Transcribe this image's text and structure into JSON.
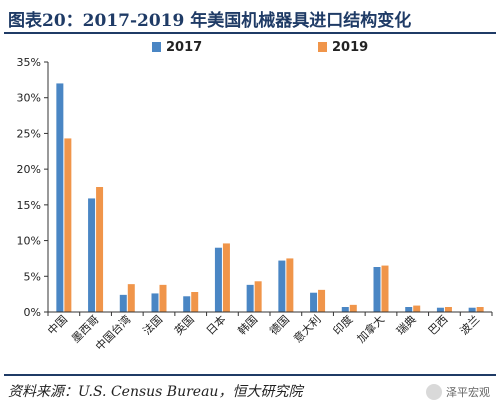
{
  "header": {
    "title": "图表20：2017-2019 年美国机械器具进口结构变化"
  },
  "footer": {
    "source": "资料来源：U.S. Census Bureau，恒大研究院",
    "watermark": "泽平宏观"
  },
  "colors": {
    "series_2017": "#4a86c4",
    "series_2019": "#f0954a",
    "frame": "#1f3b66"
  },
  "chart_data": {
    "type": "bar",
    "categories": [
      "中国",
      "墨西哥",
      "中国台湾",
      "法国",
      "英国",
      "日本",
      "韩国",
      "德国",
      "意大利",
      "印度",
      "加拿大",
      "瑞典",
      "巴西",
      "波兰"
    ],
    "series": [
      {
        "name": "2017",
        "values": [
          32.0,
          15.9,
          2.4,
          2.6,
          2.2,
          9.0,
          3.8,
          7.2,
          2.7,
          0.7,
          6.3,
          0.7,
          0.6,
          0.6
        ]
      },
      {
        "name": "2019",
        "values": [
          24.3,
          17.5,
          3.9,
          3.8,
          2.8,
          9.6,
          4.3,
          7.5,
          3.1,
          1.0,
          6.5,
          0.9,
          0.7,
          0.7
        ]
      }
    ],
    "yticks": [
      "0%",
      "5%",
      "10%",
      "15%",
      "20%",
      "25%",
      "30%",
      "35%"
    ],
    "ylim": [
      0,
      35
    ],
    "grid": false,
    "legend_position": "top-center"
  }
}
